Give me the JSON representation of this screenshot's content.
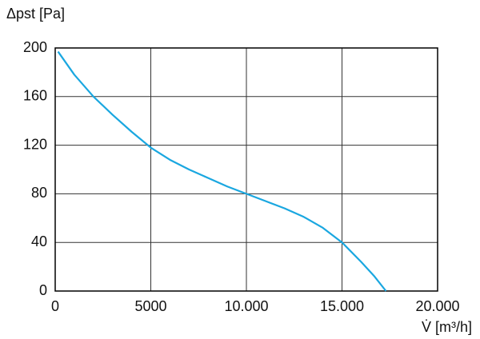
{
  "chart_data": {
    "type": "line",
    "y_label": "Δpst [Pa]",
    "x_label": "V̇ [m³/h]",
    "x": [
      150,
      1000,
      2000,
      3000,
      4000,
      5000,
      6000,
      7000,
      8000,
      9000,
      10000,
      11000,
      12000,
      13000,
      14000,
      15000,
      16000,
      16700,
      17300
    ],
    "series": [
      {
        "color": "#1aa7e0",
        "values": [
          197,
          178,
          160,
          145,
          131,
          118,
          108,
          100,
          93,
          86,
          80,
          74,
          68,
          61,
          52,
          40,
          24,
          12,
          0
        ]
      }
    ],
    "xlim": [
      0,
      20000
    ],
    "xticks": [
      0,
      5000,
      {
        "value": 10000,
        "label": "10.000"
      },
      {
        "value": 15000,
        "label": "15.000"
      },
      {
        "value": 20000,
        "label": "20.000"
      }
    ],
    "ylim": [
      0,
      200
    ],
    "yticks": [
      0,
      40,
      80,
      120,
      160,
      200
    ],
    "grid": true
  }
}
